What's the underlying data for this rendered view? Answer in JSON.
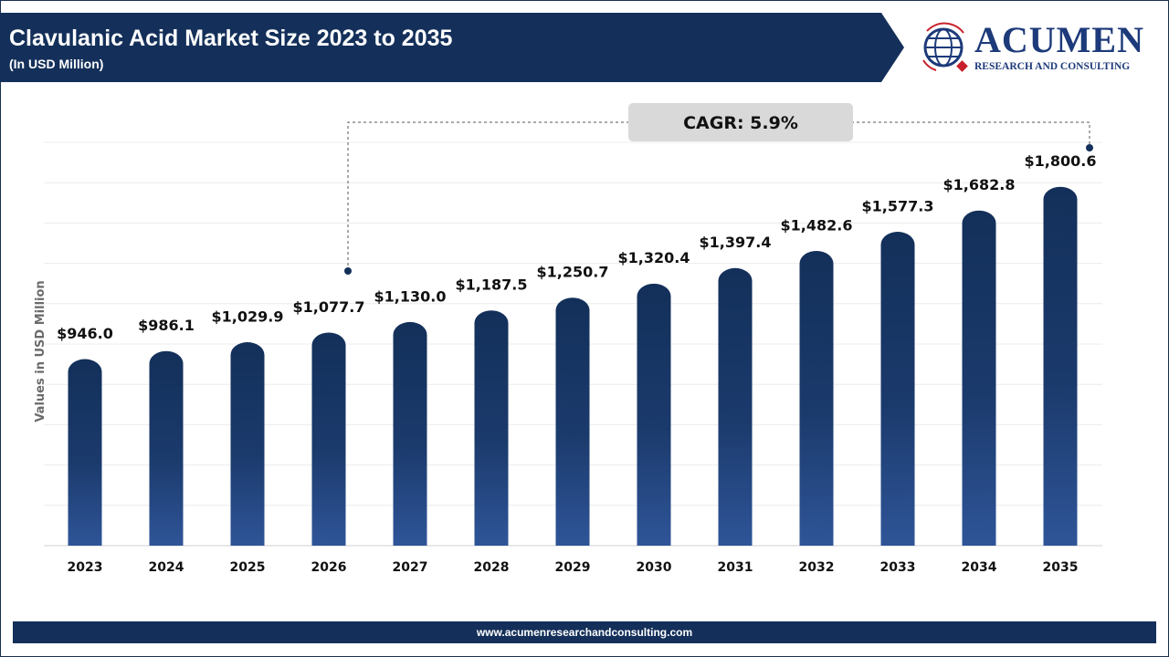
{
  "header": {
    "title": "Clavulanic Acid Market Size 2023 to 2035",
    "subtitle": "(In USD Million)"
  },
  "logo": {
    "name": "ACUMEN",
    "tagline": "RESEARCH AND CONSULTING"
  },
  "footer": {
    "url": "www.acumenresearchandconsulting.com"
  },
  "colors": {
    "banner": "#14305a",
    "bar_top": "#13305a",
    "bar_bottom": "#2f5598",
    "cagr_box": "#d9d9d9"
  },
  "chart_data": {
    "type": "bar",
    "title": "Clavulanic Acid Market Size 2023 to 2035",
    "ylabel": "Values in USD Million",
    "xlabel": "",
    "categories": [
      "2023",
      "2024",
      "2025",
      "2026",
      "2027",
      "2028",
      "2029",
      "2030",
      "2031",
      "2032",
      "2033",
      "2034",
      "2035"
    ],
    "values": [
      946.0,
      986.1,
      1029.9,
      1077.7,
      1130.0,
      1187.5,
      1250.7,
      1320.4,
      1397.4,
      1482.6,
      1577.3,
      1682.8,
      1800.6
    ],
    "data_labels": [
      "$946.0",
      "$986.1",
      "$1,029.9",
      "$1,077.7",
      "$1,130.0",
      "$1,187.5",
      "$1,250.7",
      "$1,320.4",
      "$1,397.4",
      "$1,482.6",
      "$1,577.3",
      "$1,682.8",
      "$1,800.6"
    ],
    "ylim": [
      0,
      2000
    ],
    "grid": true,
    "annotation": {
      "text": "CAGR: 5.9%",
      "from": "2026",
      "to": "2035"
    }
  }
}
